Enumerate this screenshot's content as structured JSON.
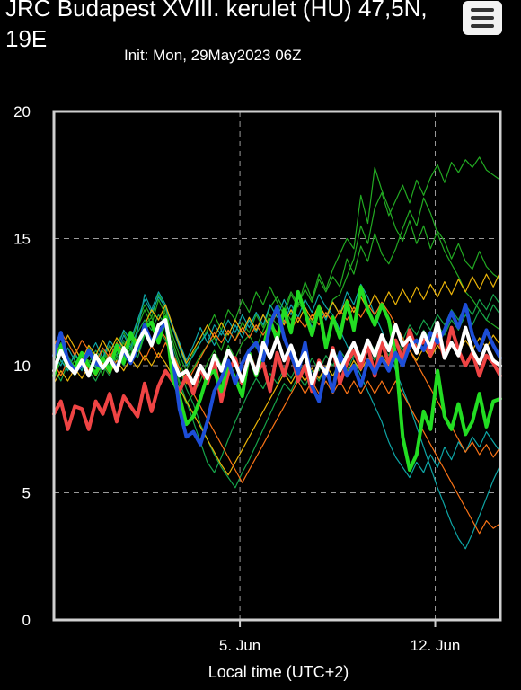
{
  "header": {
    "title": "JRC Budapest XVIII. kerulet (HU) 47,5N, 19E",
    "subtitle": "Init: Mon, 29May2023 06Z"
  },
  "menu": {
    "icon": "hamburger-menu-icon"
  },
  "chart_data": {
    "type": "line",
    "title": "JRC Budapest XVIII. kerulet (HU) 47,5N, 19E",
    "subtitle": "Init: Mon, 29May2023 06Z",
    "xlabel": "Local time (UTC+2)",
    "ylabel": "",
    "ylim": [
      0,
      20
    ],
    "xlim": [
      "2023-05-29 08:00",
      "2023-06-14 08:00"
    ],
    "yticks": [
      {
        "value": 0,
        "label": "0"
      },
      {
        "value": 5,
        "label": "5"
      },
      {
        "value": 10,
        "label": "10"
      },
      {
        "value": 15,
        "label": "15"
      },
      {
        "value": 20,
        "label": "20"
      }
    ],
    "xticks": [
      {
        "value": "2023-06-05",
        "label": "5. Jun"
      },
      {
        "value": "2023-06-12",
        "label": "12. Jun"
      }
    ],
    "grid": true,
    "x": [
      "2023-05-29 08:00",
      "2023-05-29 14:00",
      "2023-05-29 20:00",
      "2023-05-30 02:00",
      "2023-05-30 08:00",
      "2023-05-30 14:00",
      "2023-05-30 20:00",
      "2023-05-31 02:00",
      "2023-05-31 08:00",
      "2023-05-31 14:00",
      "2023-05-31 20:00",
      "2023-06-01 02:00",
      "2023-06-01 08:00",
      "2023-06-01 14:00",
      "2023-06-01 20:00",
      "2023-06-02 02:00",
      "2023-06-02 08:00",
      "2023-06-02 14:00",
      "2023-06-02 20:00",
      "2023-06-03 02:00",
      "2023-06-03 08:00",
      "2023-06-03 14:00",
      "2023-06-03 20:00",
      "2023-06-04 02:00",
      "2023-06-04 08:00",
      "2023-06-04 14:00",
      "2023-06-04 20:00",
      "2023-06-05 02:00",
      "2023-06-05 08:00",
      "2023-06-05 14:00",
      "2023-06-05 20:00",
      "2023-06-06 02:00",
      "2023-06-06 08:00",
      "2023-06-06 14:00",
      "2023-06-06 20:00",
      "2023-06-07 02:00",
      "2023-06-07 08:00",
      "2023-06-07 14:00",
      "2023-06-07 20:00",
      "2023-06-08 02:00",
      "2023-06-08 08:00",
      "2023-06-08 14:00",
      "2023-06-08 20:00",
      "2023-06-09 02:00",
      "2023-06-09 08:00",
      "2023-06-09 14:00",
      "2023-06-09 20:00",
      "2023-06-10 02:00",
      "2023-06-10 08:00",
      "2023-06-10 14:00",
      "2023-06-10 20:00",
      "2023-06-11 02:00",
      "2023-06-11 08:00",
      "2023-06-11 14:00",
      "2023-06-11 20:00",
      "2023-06-12 02:00",
      "2023-06-12 08:00",
      "2023-06-12 14:00",
      "2023-06-12 20:00",
      "2023-06-13 02:00",
      "2023-06-13 08:00",
      "2023-06-13 14:00",
      "2023-06-13 20:00",
      "2023-06-14 02:00",
      "2023-06-14 08:00"
    ],
    "series": [
      {
        "color": "#ef4444",
        "width": 4,
        "values": [
          8.1,
          8.6,
          7.5,
          8.4,
          8.3,
          7.5,
          8.6,
          8.1,
          8.9,
          7.8,
          8.8,
          8.4,
          8.0,
          9.3,
          8.2,
          9.2,
          9.8,
          9.4,
          9.0,
          9.6,
          8.9,
          9.9,
          9.3,
          10.2,
          8.6,
          9.7,
          10.3,
          9.3,
          10.5,
          9.7,
          10.1,
          9.0,
          10.5,
          9.6,
          10.6,
          9.4,
          10.0,
          9.0,
          10.2,
          9.6,
          10.7,
          9.3,
          10.1,
          10.6,
          9.9,
          10.8,
          9.6,
          10.9,
          10.1,
          11.0,
          10.2,
          11.4,
          10.6,
          11.0,
          10.4,
          11.2,
          10.3,
          11.5,
          10.6,
          10.0,
          10.5,
          9.6,
          10.4,
          10.1,
          9.6
        ]
      },
      {
        "color": "#22dd22",
        "width": 4,
        "values": [
          9.6,
          10.8,
          10.2,
          9.9,
          10.5,
          10.0,
          9.7,
          10.3,
          9.8,
          10.8,
          10.1,
          11.3,
          10.6,
          11.5,
          11.7,
          10.9,
          11.9,
          9.5,
          8.8,
          7.7,
          8.0,
          8.7,
          9.6,
          9.8,
          9.0,
          10.1,
          9.5,
          8.8,
          10.5,
          9.6,
          10.7,
          11.8,
          11.0,
          12.2,
          11.3,
          12.9,
          12.1,
          11.2,
          12.3,
          10.7,
          11.9,
          11.1,
          12.5,
          11.4,
          13.1,
          12.2,
          11.6,
          12.4,
          11.8,
          10.4,
          7.2,
          5.9,
          6.5,
          8.2,
          7.5,
          9.8,
          8.0,
          7.5,
          8.5,
          7.3,
          7.8,
          8.9,
          7.6,
          8.6,
          8.7
        ]
      },
      {
        "color": "#1d4ed8",
        "width": 4,
        "values": [
          10.4,
          11.3,
          10.2,
          9.8,
          10.0,
          10.6,
          10.1,
          9.9,
          10.3,
          9.9,
          10.6,
          10.1,
          10.7,
          11.6,
          10.9,
          11.3,
          11.7,
          10.4,
          8.3,
          7.2,
          7.4,
          6.9,
          7.8,
          9.0,
          9.5,
          10.2,
          9.3,
          10.1,
          10.6,
          10.9,
          10.2,
          11.6,
          12.3,
          11.1,
          10.4,
          9.7,
          10.9,
          9.2,
          8.6,
          9.9,
          9.0,
          10.5,
          9.6,
          10.0,
          9.2,
          10.2,
          9.7,
          10.3,
          9.8,
          10.5,
          10.0,
          10.8,
          11.0,
          10.6,
          11.3,
          10.9,
          11.4,
          12.1,
          11.5,
          12.4,
          11.2,
          10.6,
          11.4,
          10.8,
          10.3
        ]
      },
      {
        "color": "#ffffff",
        "width": 4,
        "values": [
          9.8,
          10.6,
          10.0,
          9.7,
          10.2,
          9.6,
          10.4,
          9.9,
          10.3,
          9.8,
          10.7,
          10.2,
          10.9,
          11.4,
          10.8,
          11.6,
          11.8,
          10.3,
          9.6,
          9.8,
          9.3,
          10.0,
          9.5,
          10.4,
          9.8,
          10.6,
          10.1,
          9.4,
          10.4,
          9.7,
          10.9,
          10.3,
          11.1,
          10.2,
          10.8,
          10.0,
          10.5,
          9.3,
          10.1,
          9.7,
          10.6,
          9.8,
          10.4,
          10.9,
          10.2,
          11.0,
          10.4,
          11.2,
          10.6,
          11.6,
          10.8,
          11.1,
          10.5,
          11.3,
          10.7,
          11.7,
          10.3,
          10.9,
          10.4,
          11.5,
          10.6,
          10.1,
          10.8,
          10.2,
          10.0
        ]
      },
      {
        "color": "#22aa22",
        "width": 1.2,
        "values": [
          10.2,
          10.9,
          10.1,
          9.8,
          10.4,
          10.2,
          9.9,
          10.6,
          10.0,
          10.8,
          10.5,
          11.2,
          11.0,
          11.6,
          11.9,
          11.1,
          12.3,
          10.6,
          9.2,
          8.5,
          8.9,
          9.4,
          10.1,
          10.6,
          10.0,
          10.8,
          10.3,
          10.9,
          11.2,
          10.7,
          11.4,
          12.0,
          11.6,
          12.2,
          11.8,
          12.5,
          12.1,
          11.7,
          12.4,
          11.9,
          12.6,
          12.8,
          13.5,
          14.2,
          15.5,
          14.8,
          16.2,
          16.8,
          15.9,
          16.5,
          17.1,
          16.4,
          17.3,
          16.7,
          17.4,
          17.9,
          17.2,
          18.0,
          17.6,
          18.1,
          17.8,
          18.2,
          17.7,
          17.5,
          17.3
        ]
      },
      {
        "color": "#22aa22",
        "width": 1.2,
        "values": [
          10.0,
          10.5,
          9.8,
          10.2,
          9.9,
          10.7,
          10.3,
          9.6,
          10.5,
          10.2,
          10.9,
          10.4,
          11.5,
          12.2,
          11.6,
          12.6,
          12.0,
          11.2,
          10.4,
          9.8,
          10.5,
          10.9,
          11.4,
          12.0,
          11.4,
          12.2,
          11.8,
          12.6,
          12.1,
          12.9,
          12.4,
          13.1,
          12.5,
          12.0,
          12.8,
          12.3,
          13.3,
          12.6,
          13.6,
          13.0,
          13.8,
          14.4,
          15.0,
          14.6,
          16.7,
          15.6,
          17.8,
          16.9,
          16.2,
          15.4,
          14.9,
          15.7,
          14.8,
          15.5,
          14.6,
          15.3,
          14.9,
          14.2,
          14.8,
          14.1,
          13.8,
          14.5,
          13.9,
          13.6,
          13.4
        ]
      },
      {
        "color": "#22aa22",
        "width": 1.2,
        "values": [
          9.5,
          10.2,
          9.9,
          10.4,
          10.1,
          9.7,
          10.3,
          10.6,
          10.2,
          10.9,
          11.3,
          10.8,
          11.7,
          12.4,
          11.9,
          12.8,
          12.3,
          11.0,
          10.1,
          9.5,
          9.9,
          10.4,
          10.8,
          11.1,
          10.6,
          11.4,
          11.0,
          11.7,
          11.3,
          12.0,
          11.5,
          12.3,
          12.7,
          12.2,
          12.9,
          12.4,
          13.0,
          12.5,
          13.4,
          12.9,
          13.5,
          13.1,
          14.2,
          13.6,
          14.7,
          14.1,
          15.2,
          14.4,
          14.0,
          14.6,
          15.4,
          16.1,
          15.5,
          16.6,
          16.0,
          15.2,
          14.5,
          14.0,
          13.5,
          12.9,
          12.6,
          12.2,
          11.8,
          11.6,
          11.4
        ]
      },
      {
        "color": "#0ea5a5",
        "width": 1.2,
        "values": [
          10.4,
          10.0,
          10.7,
          10.2,
          9.8,
          10.5,
          9.9,
          10.3,
          10.8,
          10.4,
          11.2,
          10.7,
          11.4,
          12.8,
          12.2,
          12.9,
          12.4,
          11.6,
          10.9,
          10.2,
          10.8,
          11.5,
          10.9,
          11.6,
          11.2,
          11.8,
          11.3,
          12.0,
          11.5,
          12.1,
          11.6,
          12.4,
          11.9,
          12.6,
          12.0,
          12.8,
          12.2,
          11.5,
          12.3,
          11.8,
          12.5,
          12.0,
          12.9,
          12.4,
          13.2,
          12.7,
          12.0,
          11.4,
          10.6,
          9.8,
          9.1,
          8.4,
          7.6,
          6.8,
          6.0,
          5.2,
          4.5,
          3.8,
          3.2,
          2.8,
          3.4,
          4.1,
          4.8,
          5.5,
          6.1
        ]
      },
      {
        "color": "#0ea5a5",
        "width": 1.2,
        "values": [
          10.6,
          10.2,
          9.8,
          10.5,
          10.0,
          10.4,
          10.9,
          10.3,
          11.0,
          10.6,
          11.4,
          11.0,
          11.8,
          12.6,
          12.1,
          12.7,
          12.3,
          11.5,
          10.7,
          10.0,
          10.4,
          10.9,
          11.3,
          10.8,
          11.4,
          10.9,
          11.6,
          11.1,
          11.8,
          11.3,
          12.0,
          11.5,
          12.2,
          11.7,
          12.4,
          11.9,
          12.6,
          12.1,
          12.8,
          12.3,
          12.0,
          11.4,
          10.8,
          10.2,
          9.6,
          9.0,
          8.4,
          7.8,
          7.0,
          6.4,
          6.0,
          5.6,
          6.2,
          5.8,
          6.5,
          6.0,
          6.8,
          6.3,
          7.0,
          6.6,
          7.2,
          6.8,
          7.4,
          7.0,
          6.6
        ]
      },
      {
        "color": "#16a34a",
        "width": 1.2,
        "values": [
          9.9,
          9.4,
          10.1,
          9.6,
          10.3,
          9.8,
          9.4,
          10.0,
          9.6,
          10.4,
          10.0,
          10.7,
          10.3,
          11.2,
          10.8,
          11.4,
          11.0,
          10.2,
          9.4,
          8.6,
          7.8,
          7.0,
          6.2,
          5.8,
          6.4,
          7.1,
          7.8,
          8.4,
          9.0,
          9.5,
          9.1,
          9.7,
          9.3,
          9.9,
          9.5,
          10.1,
          9.7,
          10.3,
          9.8,
          10.4,
          10.0,
          10.6,
          10.2,
          10.8,
          10.4,
          11.0,
          10.6,
          11.2,
          10.8,
          11.4,
          11.0,
          11.6,
          11.2,
          11.8,
          11.4,
          12.0,
          11.6,
          12.2,
          11.8,
          12.4,
          12.0,
          12.6,
          12.2,
          12.8,
          12.4
        ]
      },
      {
        "color": "#16a34a",
        "width": 1.2,
        "values": [
          10.3,
          10.8,
          10.4,
          9.9,
          10.5,
          10.1,
          10.6,
          10.2,
          10.8,
          10.4,
          11.0,
          10.6,
          11.3,
          11.8,
          11.4,
          12.0,
          11.6,
          10.8,
          9.9,
          9.1,
          8.5,
          7.7,
          7.1,
          6.5,
          6.0,
          5.6,
          5.2,
          5.8,
          6.3,
          6.9,
          7.5,
          8.1,
          8.7,
          9.3,
          9.0,
          9.6,
          9.2,
          9.8,
          9.4,
          10.0,
          9.6,
          10.2,
          9.8,
          10.4,
          10.0,
          10.6,
          10.2,
          10.8,
          10.4,
          11.0,
          10.6,
          11.2,
          10.8,
          11.4,
          11.0,
          11.6,
          11.2,
          11.8,
          11.4,
          12.0,
          11.6,
          12.2,
          11.8,
          12.4,
          12.0
        ]
      },
      {
        "color": "#eab308",
        "width": 1.2,
        "values": [
          11.0,
          10.5,
          11.2,
          10.7,
          10.2,
          10.8,
          10.4,
          11.0,
          10.5,
          11.1,
          10.7,
          11.3,
          10.9,
          11.6,
          12.2,
          11.8,
          12.4,
          11.6,
          10.8,
          10.1,
          10.6,
          11.1,
          11.6,
          11.1,
          11.7,
          11.2,
          11.8,
          11.3,
          11.9,
          11.4,
          12.0,
          11.5,
          12.1,
          11.6,
          12.2,
          11.7,
          12.3,
          11.8,
          12.4,
          11.9,
          12.5,
          12.0,
          12.6,
          12.1,
          12.7,
          12.2,
          12.8,
          12.3,
          12.9,
          12.4,
          13.0,
          12.5,
          13.1,
          12.6,
          13.2,
          12.7,
          13.3,
          12.8,
          13.4,
          12.9,
          13.5,
          13.0,
          13.6,
          13.1,
          13.7
        ]
      },
      {
        "color": "#eab308",
        "width": 1.2,
        "values": [
          9.3,
          9.8,
          9.4,
          9.9,
          9.5,
          10.0,
          9.6,
          10.1,
          9.7,
          10.2,
          9.8,
          10.3,
          9.9,
          10.4,
          10.0,
          10.5,
          10.1,
          9.6,
          9.1,
          8.6,
          8.1,
          7.6,
          7.1,
          6.6,
          6.1,
          5.7,
          6.2,
          6.7,
          7.2,
          7.7,
          8.2,
          8.7,
          9.2,
          9.7,
          9.3,
          9.8,
          9.4,
          9.9,
          9.5,
          10.0,
          9.6,
          10.1,
          9.7,
          10.2,
          9.8,
          10.3,
          9.9,
          10.4,
          10.0,
          10.5,
          10.1,
          10.6,
          10.2,
          10.7,
          10.3,
          10.8,
          10.4,
          10.9,
          10.5,
          11.0,
          10.6,
          11.1,
          10.7,
          11.2,
          10.8
        ]
      },
      {
        "color": "#f97316",
        "width": 1.2,
        "values": [
          10.8,
          11.3,
          10.9,
          10.4,
          11.0,
          10.6,
          10.1,
          10.7,
          10.3,
          10.9,
          10.5,
          11.1,
          10.7,
          11.3,
          10.9,
          11.5,
          11.1,
          10.5,
          9.9,
          9.3,
          9.8,
          10.3,
          10.8,
          11.3,
          10.9,
          11.4,
          11.0,
          11.5,
          11.1,
          11.6,
          11.2,
          11.7,
          11.3,
          11.8,
          11.4,
          11.9,
          11.5,
          12.0,
          11.6,
          12.1,
          11.7,
          12.2,
          11.8,
          12.3,
          11.9,
          12.4,
          12.0,
          12.5,
          12.1,
          11.6,
          11.1,
          10.6,
          10.1,
          9.6,
          9.1,
          8.6,
          8.1,
          7.6,
          7.1,
          6.6,
          7.0,
          6.5,
          6.9,
          6.4,
          6.8
        ]
      },
      {
        "color": "#f97316",
        "width": 1.2,
        "values": [
          10.1,
          9.6,
          10.2,
          9.7,
          10.3,
          9.8,
          10.4,
          9.9,
          10.5,
          10.0,
          10.6,
          10.1,
          10.7,
          10.2,
          10.8,
          10.3,
          10.9,
          10.4,
          9.9,
          9.4,
          8.9,
          8.4,
          7.9,
          7.4,
          6.9,
          6.4,
          5.9,
          5.4,
          5.9,
          6.4,
          6.9,
          7.4,
          7.9,
          8.4,
          8.9,
          9.4,
          8.9,
          9.4,
          8.9,
          9.4,
          8.9,
          9.4,
          8.9,
          9.4,
          8.9,
          9.4,
          8.9,
          9.4,
          8.9,
          9.4,
          8.9,
          8.4,
          7.9,
          7.4,
          6.9,
          6.4,
          5.9,
          5.4,
          4.9,
          4.4,
          3.9,
          3.4,
          3.9,
          3.6,
          3.8
        ]
      }
    ]
  }
}
